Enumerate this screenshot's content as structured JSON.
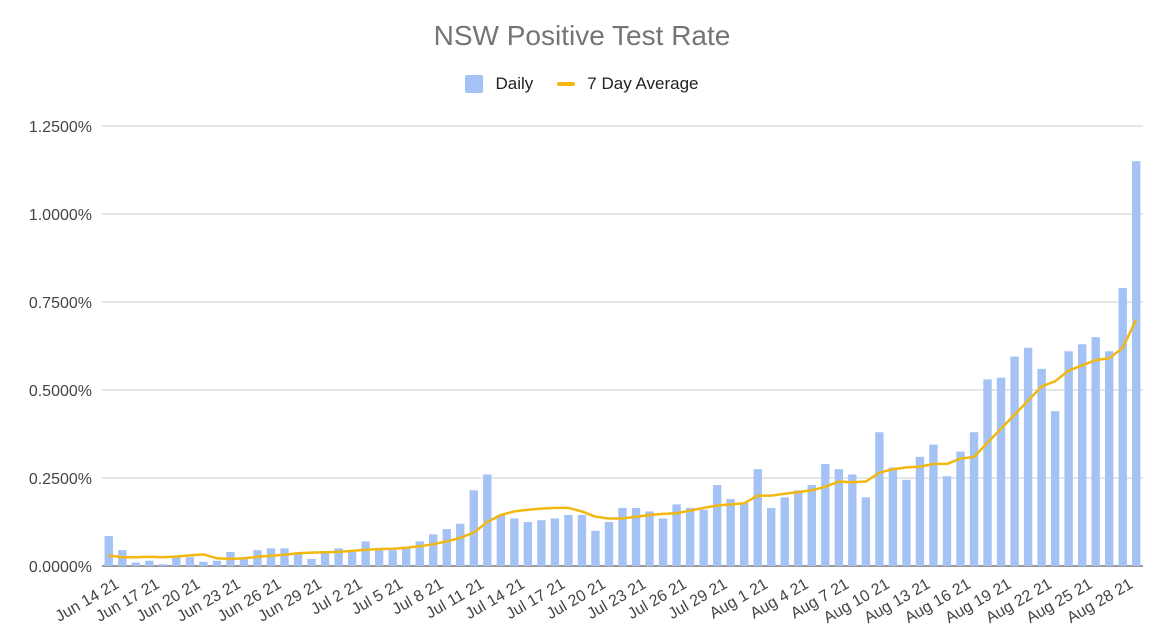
{
  "colors": {
    "bar": "#a4c2f4",
    "line": "#f1b811",
    "grid": "#cccccc",
    "axis_text": "#444444"
  },
  "chart_data": {
    "type": "bar",
    "title": "NSW Positive Test Rate",
    "xlabel": "",
    "ylabel": "",
    "ylim": [
      0,
      1.25
    ],
    "yticks": [
      "0.0000%",
      "0.2500%",
      "0.5000%",
      "0.7500%",
      "1.0000%",
      "1.2500%"
    ],
    "ytick_values": [
      0,
      0.25,
      0.5,
      0.75,
      1.0,
      1.25
    ],
    "legend": "top",
    "grid": true,
    "categories": [
      "Jun 14 21",
      "Jun 15 21",
      "Jun 16 21",
      "Jun 17 21",
      "Jun 18 21",
      "Jun 19 21",
      "Jun 20 21",
      "Jun 21 21",
      "Jun 22 21",
      "Jun 23 21",
      "Jun 24 21",
      "Jun 25 21",
      "Jun 26 21",
      "Jun 27 21",
      "Jun 28 21",
      "Jun 29 21",
      "Jun 30 21",
      "Jul 1 21",
      "Jul 2 21",
      "Jul 3 21",
      "Jul 4 21",
      "Jul 5 21",
      "Jul 6 21",
      "Jul 7 21",
      "Jul 8 21",
      "Jul 9 21",
      "Jul 10 21",
      "Jul 11 21",
      "Jul 12 21",
      "Jul 13 21",
      "Jul 14 21",
      "Jul 15 21",
      "Jul 16 21",
      "Jul 17 21",
      "Jul 18 21",
      "Jul 19 21",
      "Jul 20 21",
      "Jul 21 21",
      "Jul 22 21",
      "Jul 23 21",
      "Jul 24 21",
      "Jul 25 21",
      "Jul 26 21",
      "Jul 27 21",
      "Jul 28 21",
      "Jul 29 21",
      "Jul 30 21",
      "Jul 31 21",
      "Aug 1 21",
      "Aug 2 21",
      "Aug 3 21",
      "Aug 4 21",
      "Aug 5 21",
      "Aug 6 21",
      "Aug 7 21",
      "Aug 8 21",
      "Aug 9 21",
      "Aug 10 21",
      "Aug 11 21",
      "Aug 12 21",
      "Aug 13 21",
      "Aug 14 21",
      "Aug 15 21",
      "Aug 16 21",
      "Aug 17 21",
      "Aug 18 21",
      "Aug 19 21",
      "Aug 20 21",
      "Aug 21 21",
      "Aug 22 21",
      "Aug 23 21",
      "Aug 24 21",
      "Aug 25 21",
      "Aug 26 21",
      "Aug 27 21",
      "Aug 28 21",
      "Aug 29 21"
    ],
    "xtick_labels": [
      "Jun 14 21",
      "Jun 17 21",
      "Jun 20 21",
      "Jun 23 21",
      "Jun 26 21",
      "Jun 29 21",
      "Jul 2 21",
      "Jul 5 21",
      "Jul 8 21",
      "Jul 11 21",
      "Jul 14 21",
      "Jul 17 21",
      "Jul 20 21",
      "Jul 23 21",
      "Jul 26 21",
      "Jul 29 21",
      "Aug 1 21",
      "Aug 4 21",
      "Aug 7 21",
      "Aug 10 21",
      "Aug 13 21",
      "Aug 16 21",
      "Aug 19 21",
      "Aug 22 21",
      "Aug 25 21",
      "Aug 28 21"
    ],
    "series": [
      {
        "name": "Daily",
        "kind": "bar",
        "values": [
          0.085,
          0.045,
          0.01,
          0.015,
          0.005,
          0.025,
          0.025,
          0.012,
          0.015,
          0.04,
          0.025,
          0.045,
          0.05,
          0.05,
          0.035,
          0.02,
          0.04,
          0.05,
          0.04,
          0.07,
          0.045,
          0.045,
          0.055,
          0.07,
          0.09,
          0.105,
          0.12,
          0.215,
          0.26,
          0.145,
          0.135,
          0.125,
          0.13,
          0.135,
          0.145,
          0.145,
          0.1,
          0.125,
          0.165,
          0.165,
          0.155,
          0.135,
          0.175,
          0.165,
          0.16,
          0.23,
          0.19,
          0.18,
          0.275,
          0.165,
          0.195,
          0.215,
          0.23,
          0.29,
          0.275,
          0.26,
          0.195,
          0.38,
          0.28,
          0.245,
          0.31,
          0.345,
          0.255,
          0.325,
          0.38,
          0.53,
          0.535,
          0.595,
          0.62,
          0.56,
          0.44,
          0.61,
          0.63,
          0.65,
          0.61,
          0.79,
          1.15
        ]
      },
      {
        "name": "7 Day Average",
        "kind": "line",
        "values": [
          0.03,
          0.025,
          0.025,
          0.026,
          0.025,
          0.027,
          0.03,
          0.033,
          0.022,
          0.02,
          0.022,
          0.026,
          0.029,
          0.032,
          0.036,
          0.038,
          0.039,
          0.04,
          0.043,
          0.046,
          0.048,
          0.049,
          0.052,
          0.056,
          0.062,
          0.07,
          0.08,
          0.095,
          0.125,
          0.145,
          0.155,
          0.16,
          0.163,
          0.165,
          0.165,
          0.155,
          0.14,
          0.135,
          0.135,
          0.14,
          0.145,
          0.148,
          0.15,
          0.157,
          0.165,
          0.172,
          0.175,
          0.178,
          0.2,
          0.2,
          0.205,
          0.21,
          0.215,
          0.225,
          0.24,
          0.238,
          0.24,
          0.265,
          0.275,
          0.28,
          0.282,
          0.29,
          0.29,
          0.305,
          0.31,
          0.35,
          0.39,
          0.43,
          0.47,
          0.51,
          0.525,
          0.555,
          0.57,
          0.585,
          0.59,
          0.62,
          0.7
        ]
      }
    ]
  }
}
